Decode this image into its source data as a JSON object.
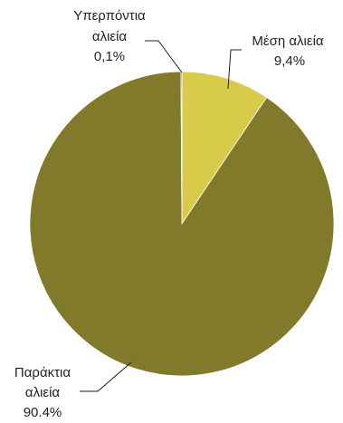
{
  "chart_data": {
    "type": "pie",
    "title": "",
    "start": "top",
    "direction": "clockwise",
    "slices": [
      {
        "label_lines": [
          "Μέση αλιεία"
        ],
        "value_label": "9,4%",
        "value": 9.4,
        "color": "#d9cb4a"
      },
      {
        "label_lines": [
          "Παράκτια",
          "αλιεία"
        ],
        "value_label": "90.4%",
        "value": 90.4,
        "color": "#807a2a"
      },
      {
        "label_lines": [
          "Υπερπόντια",
          "αλιεία"
        ],
        "value_label": "0,1%",
        "value": 0.1,
        "color": "#1f1d16"
      }
    ]
  }
}
